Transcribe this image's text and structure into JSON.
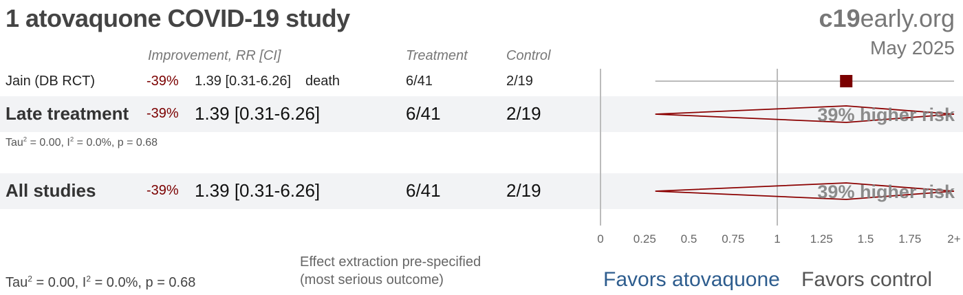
{
  "title": "1 atovaquone COVID-19 study",
  "brand": {
    "prefix": "c19",
    "suffix": "early.org"
  },
  "date": "May 2025",
  "headers": {
    "effect": "Improvement, RR [CI]",
    "treatment": "Treatment",
    "control": "Control"
  },
  "rows": [
    {
      "label": "Jain (DB RCT)",
      "pct": "-39%",
      "rr": "1.39 [0.31-6.26]",
      "outcome": "death",
      "treatment": "6/41",
      "control": "2/19"
    },
    {
      "label": "Late treatment",
      "pct": "-39%",
      "rr": "1.39 [0.31-6.26]",
      "treatment": "6/41",
      "control": "2/19"
    },
    {
      "label": "All studies",
      "pct": "-39%",
      "rr": "1.39 [0.31-6.26]",
      "treatment": "6/41",
      "control": "2/19"
    }
  ],
  "late_stats": {
    "pre": "Tau",
    "mid": " = 0.00, I",
    "post": " = 0.0%, p = 0.68",
    "sup": "2"
  },
  "all_stats": {
    "pre": "Tau",
    "mid": " = 0.00, I",
    "post": " = 0.0%, p = 0.68",
    "sup": "2"
  },
  "note": "Effect extraction pre-specified\n(most serious outcome)",
  "favors": {
    "left": "Favors atovaquone",
    "right": "Favors control"
  },
  "chart_data": {
    "type": "forest",
    "x_ticks": [
      "0",
      "0.25",
      "0.5",
      "0.75",
      "1",
      "1.25",
      "1.5",
      "1.75",
      "2+"
    ],
    "xlim": [
      0,
      2
    ],
    "reference_line": 1,
    "studies": [
      {
        "label": "Jain (DB RCT)",
        "rr": 1.39,
        "ci_low": 0.31,
        "ci_high": 6.26
      }
    ],
    "pooled": [
      {
        "label": "Late treatment",
        "rr": 1.39,
        "ci_low": 0.31,
        "ci_high": 6.26,
        "annotation": "39% higher risk"
      },
      {
        "label": "All studies",
        "rr": 1.39,
        "ci_low": 0.31,
        "ci_high": 6.26,
        "annotation": "39% higher risk"
      }
    ],
    "colors": {
      "marker": "#7b0000",
      "diamond_stroke": "#8b0000",
      "ci_line": "#bbbbbb",
      "axis": "#bbbbbb"
    }
  }
}
